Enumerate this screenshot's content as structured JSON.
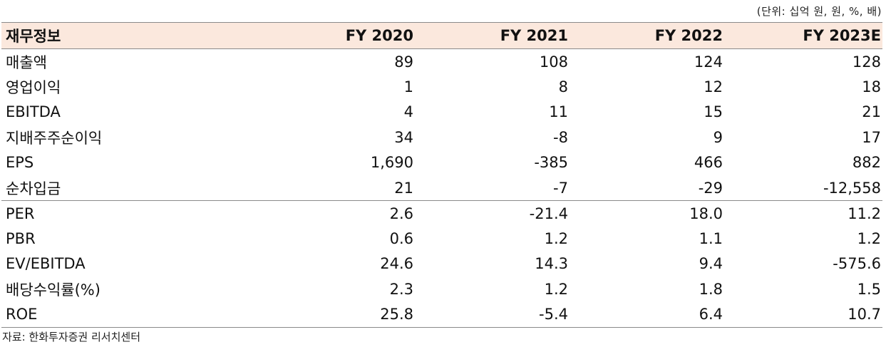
{
  "unit_note": "(단위: 십억 원, 원, %, 배)",
  "header": {
    "label": "재무정보",
    "years": [
      "FY 2020",
      "FY 2021",
      "FY 2022",
      "FY 2023E"
    ]
  },
  "rows": [
    {
      "label": "매출액",
      "values": [
        "89",
        "108",
        "124",
        "128"
      ]
    },
    {
      "label": "영업이익",
      "values": [
        "1",
        "8",
        "12",
        "18"
      ]
    },
    {
      "label": "EBITDA",
      "values": [
        "4",
        "11",
        "15",
        "21"
      ]
    },
    {
      "label": "지배주주순이익",
      "values": [
        "34",
        "-8",
        "9",
        "17"
      ]
    },
    {
      "label": "EPS",
      "values": [
        "1,690",
        "-385",
        "466",
        "882"
      ]
    },
    {
      "label": "순차입금",
      "values": [
        "21",
        "-7",
        "-29",
        "-12,558"
      ]
    },
    {
      "label": "PER",
      "values": [
        "2.6",
        "-21.4",
        "18.0",
        "11.2"
      ]
    },
    {
      "label": "PBR",
      "values": [
        "0.6",
        "1.2",
        "1.1",
        "1.2"
      ]
    },
    {
      "label": "EV/EBITDA",
      "values": [
        "24.6",
        "14.3",
        "9.4",
        "-575.6"
      ]
    },
    {
      "label": "배당수익률(%)",
      "values": [
        "2.3",
        "1.2",
        "1.8",
        "1.5"
      ]
    },
    {
      "label": "ROE",
      "values": [
        "25.8",
        "-5.4",
        "6.4",
        "10.7"
      ]
    }
  ],
  "source": "자료: 한화투자증권 리서치센터"
}
